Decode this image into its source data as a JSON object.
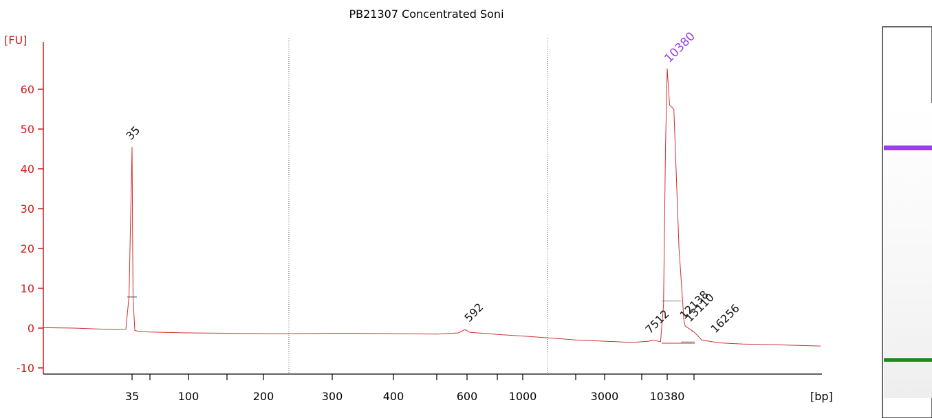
{
  "chart_data": {
    "type": "line",
    "title": "PB21307 Concentrated Soni",
    "ylabel": "[FU]",
    "xlabel": "[bp]",
    "ylim": [
      -11,
      69
    ],
    "yticks": [
      -10,
      0,
      10,
      20,
      30,
      40,
      50,
      60
    ],
    "x_tick_labels": [
      "35",
      "100",
      "200",
      "300",
      "400",
      "600",
      "1000",
      "3000",
      "10380"
    ],
    "grid": false,
    "scale_note": "size ladder axis (non-linear, standard marker positions)",
    "region_boundaries_bp": [
      240,
      1300
    ],
    "series": [
      {
        "color": "#cc3030",
        "points": [
          [
            15,
            0.1
          ],
          [
            20,
            0.0
          ],
          [
            25,
            -0.2
          ],
          [
            30,
            -0.4
          ],
          [
            33,
            -0.3
          ],
          [
            34,
            8
          ],
          [
            35,
            45.5
          ],
          [
            36,
            8
          ],
          [
            38,
            -0.6
          ],
          [
            42,
            -0.8
          ],
          [
            60,
            -1.0
          ],
          [
            100,
            -1.2
          ],
          [
            150,
            -1.3
          ],
          [
            200,
            -1.4
          ],
          [
            250,
            -1.4
          ],
          [
            300,
            -1.3
          ],
          [
            350,
            -1.3
          ],
          [
            400,
            -1.4
          ],
          [
            500,
            -1.5
          ],
          [
            570,
            -1.2
          ],
          [
            592,
            -0.4
          ],
          [
            620,
            -1.1
          ],
          [
            700,
            -1.3
          ],
          [
            800,
            -1.6
          ],
          [
            1000,
            -2.0
          ],
          [
            1500,
            -2.6
          ],
          [
            2000,
            -3.0
          ],
          [
            3000,
            -3.3
          ],
          [
            5000,
            -3.6
          ],
          [
            7000,
            -3.3
          ],
          [
            7512,
            -3.0
          ],
          [
            9000,
            -3.4
          ],
          [
            9600,
            6
          ],
          [
            10000,
            45
          ],
          [
            10380,
            65.2
          ],
          [
            10600,
            56
          ],
          [
            11000,
            55
          ],
          [
            11500,
            20
          ],
          [
            12000,
            2
          ],
          [
            12138,
            0.5
          ],
          [
            13110,
            -1
          ],
          [
            14000,
            -3
          ],
          [
            16256,
            -3.7
          ],
          [
            20000,
            -4.0
          ],
          [
            30000,
            -4.2
          ],
          [
            50000,
            -4.5
          ]
        ]
      }
    ],
    "peak_labels": [
      {
        "label": "35",
        "x": 35,
        "y": 45.5,
        "color": "#1a8a1a"
      },
      {
        "label": "592",
        "x": 592,
        "y": -0.4,
        "color": "#111111"
      },
      {
        "label": "7512",
        "x": 7512,
        "y": -3.0,
        "color": "#111111"
      },
      {
        "label": "10380",
        "x": 10380,
        "y": 65.2,
        "color": "#9a3ee6"
      },
      {
        "label": "12138",
        "x": 12138,
        "y": 0.5,
        "color": "#111111"
      },
      {
        "label": "13110",
        "x": 13110,
        "y": -1,
        "color": "#111111"
      },
      {
        "label": "16256",
        "x": 16256,
        "y": -3.7,
        "color": "#111111"
      }
    ],
    "gel_lane": {
      "upper_marker_color": "#9a3ee6",
      "lower_marker_color": "#1a8a1a"
    }
  }
}
